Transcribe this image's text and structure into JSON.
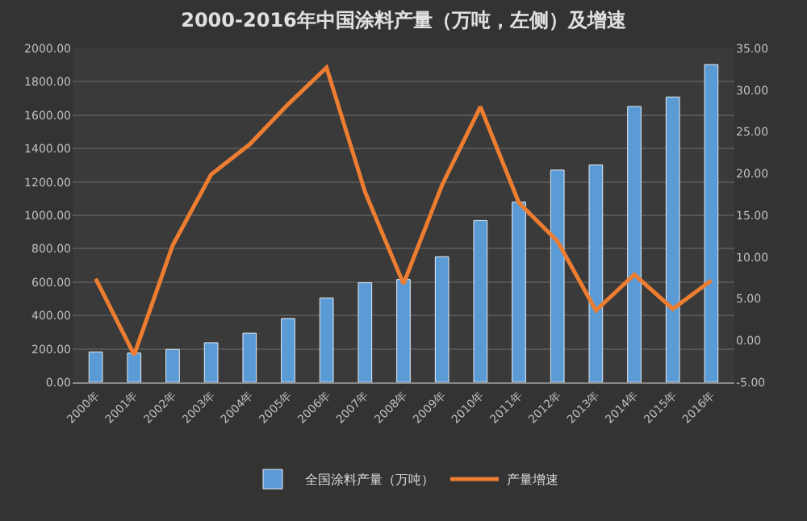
{
  "chart_data": {
    "type": "bar",
    "title": "2000-2016年中国涂料产量（万吨，左侧）及增速",
    "categories": [
      "2000年",
      "2001年",
      "2002年",
      "2003年",
      "2004年",
      "2005年",
      "2006年",
      "2007年",
      "2008年",
      "2009年",
      "2010年",
      "2011年",
      "2012年",
      "2013年",
      "2014年",
      "2015年",
      "2016年"
    ],
    "series": [
      {
        "name": "全国涂料产量（万吨）",
        "color": "#5b9bd5",
        "values": [
          182,
          175,
          197,
          237,
          294,
          382,
          505,
          596,
          615,
          752,
          969,
          1080,
          1271,
          1302,
          1652,
          1709,
          1903
        ]
      },
      {
        "name": "产量增速",
        "type": "line",
        "axis": "y2",
        "color": "#ed7d31",
        "values": [
          7.4,
          -1.7,
          11.4,
          19.9,
          23.5,
          28.3,
          32.7,
          17.8,
          6.8,
          18.6,
          28.0,
          16.5,
          11.9,
          3.6,
          7.9,
          3.8,
          7.2
        ]
      }
    ],
    "ylim": [
      0,
      2000
    ],
    "yticks": [
      {
        "value": 0,
        "label": "0.00"
      },
      {
        "value": 200,
        "label": "200.00"
      },
      {
        "value": 400,
        "label": "400.00"
      },
      {
        "value": 600,
        "label": "600.00"
      },
      {
        "value": 800,
        "label": "800.00"
      },
      {
        "value": 1000,
        "label": "1000.00"
      },
      {
        "value": 1200,
        "label": "1200.00"
      },
      {
        "value": 1400,
        "label": "1400.00"
      },
      {
        "value": 1600,
        "label": "1600.00"
      },
      {
        "value": 1800,
        "label": "1800.00"
      },
      {
        "value": 2000,
        "label": "2000.00"
      }
    ],
    "y2lim": [
      -5,
      35
    ],
    "y2ticks": [
      {
        "value": -5,
        "label": "-5.00"
      },
      {
        "value": 0,
        "label": "0.00"
      },
      {
        "value": 5,
        "label": "5.00"
      },
      {
        "value": 10,
        "label": "10.00"
      },
      {
        "value": 15,
        "label": "15.00"
      },
      {
        "value": 20,
        "label": "20.00"
      },
      {
        "value": 25,
        "label": "25.00"
      },
      {
        "value": 30,
        "label": "30.00"
      },
      {
        "value": 35,
        "label": "35.00"
      }
    ],
    "grid": "y",
    "legend": "bottom",
    "marker": "none",
    "line_style": "solid"
  }
}
